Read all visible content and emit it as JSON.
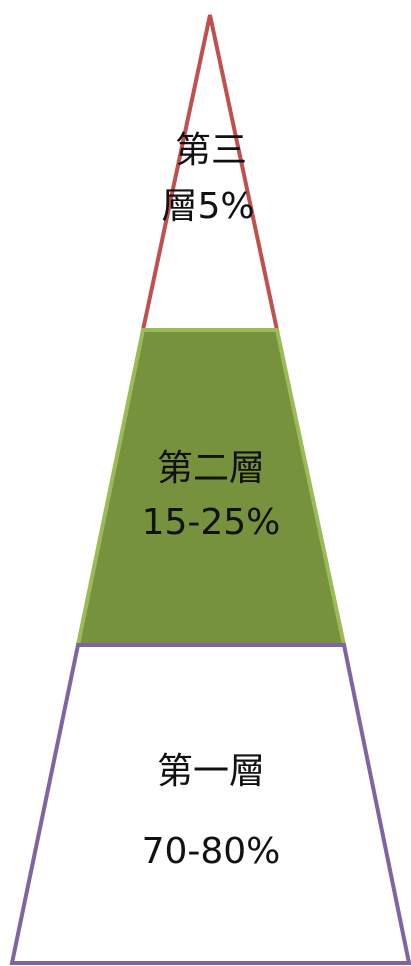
{
  "pyramid": {
    "tiers": [
      {
        "id": "tier-3",
        "line1": "第三",
        "line2": "層5%",
        "fill": "#ffffff",
        "stroke": "#c0504d"
      },
      {
        "id": "tier-2",
        "line1": "第二層",
        "line2": "15-25%",
        "fill": "#76923c",
        "stroke": "#9bbb59"
      },
      {
        "id": "tier-1",
        "line1": "第一層",
        "line2": "70-80%",
        "fill": "#ffffff",
        "stroke": "#8064a2"
      }
    ]
  }
}
